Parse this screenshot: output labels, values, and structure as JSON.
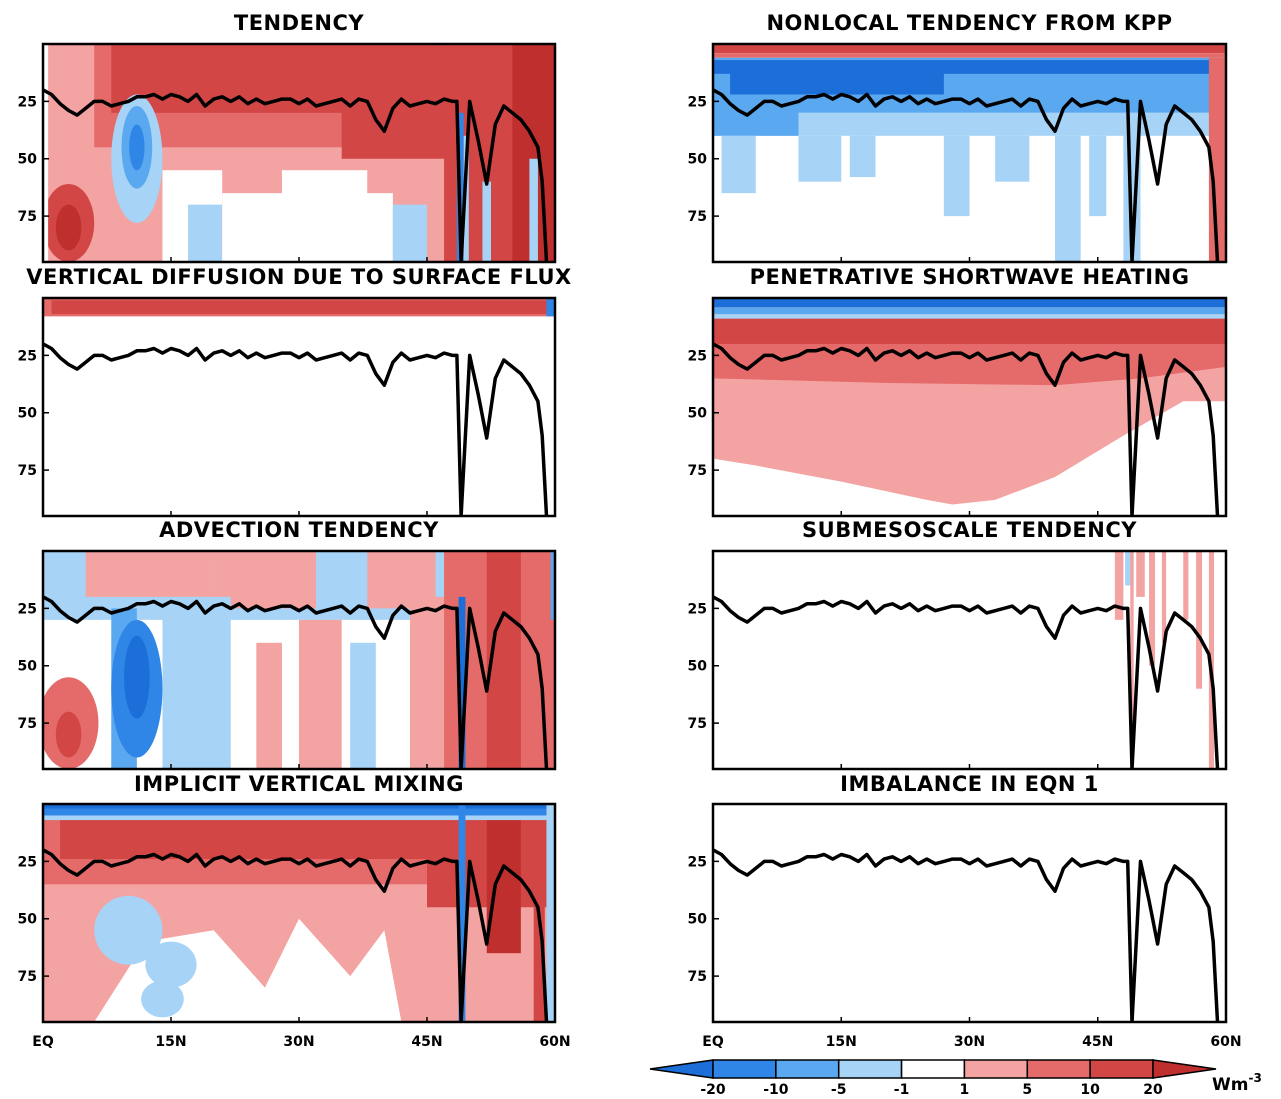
{
  "chart_data": {
    "type": "heatmap",
    "panels": [
      {
        "title": "TENDENCY",
        "pattern": "tendency"
      },
      {
        "title": "NONLOCAL TENDENCY FROM KPP",
        "pattern": "nonlocal"
      },
      {
        "title": "VERTICAL DIFFUSION DUE TO SURFACE FLUX",
        "pattern": "surface"
      },
      {
        "title": "PENETRATIVE SHORTWAVE HEATING",
        "pattern": "shortwave"
      },
      {
        "title": "ADVECTION TENDENCY",
        "pattern": "advection"
      },
      {
        "title": "SUBMESOSCALE TENDENCY",
        "pattern": "submeso"
      },
      {
        "title": "IMPLICIT VERTICAL MIXING",
        "pattern": "implicit"
      },
      {
        "title": "IMBALANCE IN EQN 1",
        "pattern": "imbalance"
      }
    ],
    "x_ticks": [
      "EQ",
      "15N",
      "30N",
      "45N",
      "60N"
    ],
    "x_tick_values": [
      0,
      15,
      30,
      45,
      60
    ],
    "xlim": [
      0,
      60
    ],
    "y_ticks": [
      "25",
      "50",
      "75"
    ],
    "y_tick_values": [
      25,
      50,
      75
    ],
    "ylim": [
      0,
      95
    ],
    "y_inverted": true,
    "colorbar": {
      "levels": [
        "-20",
        "-10",
        "-5",
        "-1",
        "1",
        "5",
        "10",
        "20"
      ],
      "unit": "Wm",
      "unit_exponent": "-3",
      "colors": [
        "#1c6ed8",
        "#2f86e6",
        "#5aa8f0",
        "#a6d3f6",
        "#ffffff",
        "#f3a3a2",
        "#e56b6a",
        "#d24746",
        "#bf2f2e"
      ],
      "extend": "both"
    },
    "mixed_layer_depth": {
      "x": [
        0,
        1,
        2,
        3,
        4,
        5,
        6,
        7,
        8,
        9,
        10,
        11,
        12,
        13,
        14,
        15,
        16,
        17,
        18,
        19,
        20,
        21,
        22,
        23,
        24,
        25,
        26,
        27,
        28,
        29,
        30,
        31,
        32,
        33,
        34,
        35,
        36,
        37,
        38,
        39,
        40,
        41,
        42,
        43,
        44,
        45,
        46,
        47,
        48,
        48.5,
        49,
        50,
        51,
        52,
        53,
        54,
        55,
        56,
        57,
        58,
        58.5,
        59
      ],
      "y": [
        20,
        22,
        26,
        29,
        31,
        28,
        25,
        25,
        27,
        26,
        25,
        23,
        23,
        22,
        24,
        22,
        23,
        25,
        22,
        27,
        24,
        23,
        25,
        23,
        26,
        24,
        26,
        25,
        24,
        24,
        26,
        24,
        27,
        26,
        25,
        24,
        27,
        24,
        25,
        33,
        38,
        28,
        24,
        27,
        26,
        25,
        26,
        24,
        25,
        25,
        95,
        25,
        42,
        61,
        35,
        27,
        30,
        33,
        38,
        45,
        60,
        95
      ]
    }
  }
}
